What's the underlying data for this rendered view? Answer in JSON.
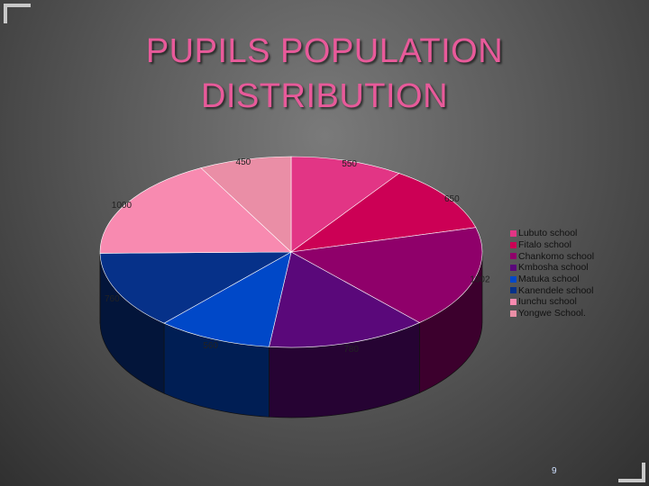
{
  "page": {
    "number": "9"
  },
  "chart_data": {
    "type": "pie",
    "variant": "3d",
    "title": "PUPILS POPULATION DISTRIBUTION",
    "legend_position": "right",
    "slices": [
      {
        "name": "Lubuto school",
        "value": 550,
        "color": "#e23585"
      },
      {
        "name": "Fitalo school",
        "value": 650,
        "color": "#cc0055"
      },
      {
        "name": "Chankomo school",
        "value": 1002,
        "color": "#8f006a"
      },
      {
        "name": "Kmbosha school",
        "value": 780,
        "color": "#5a087a"
      },
      {
        "name": "Matuka school",
        "value": 560,
        "color": "#0048c8"
      },
      {
        "name": "Kanendele school",
        "value": 760,
        "color": "#063189"
      },
      {
        "name": "Iunchu school",
        "value": 1000,
        "color": "#f88ab0"
      },
      {
        "name": "Yongwe School.",
        "value": 450,
        "color": "#ea8ea6"
      }
    ]
  }
}
